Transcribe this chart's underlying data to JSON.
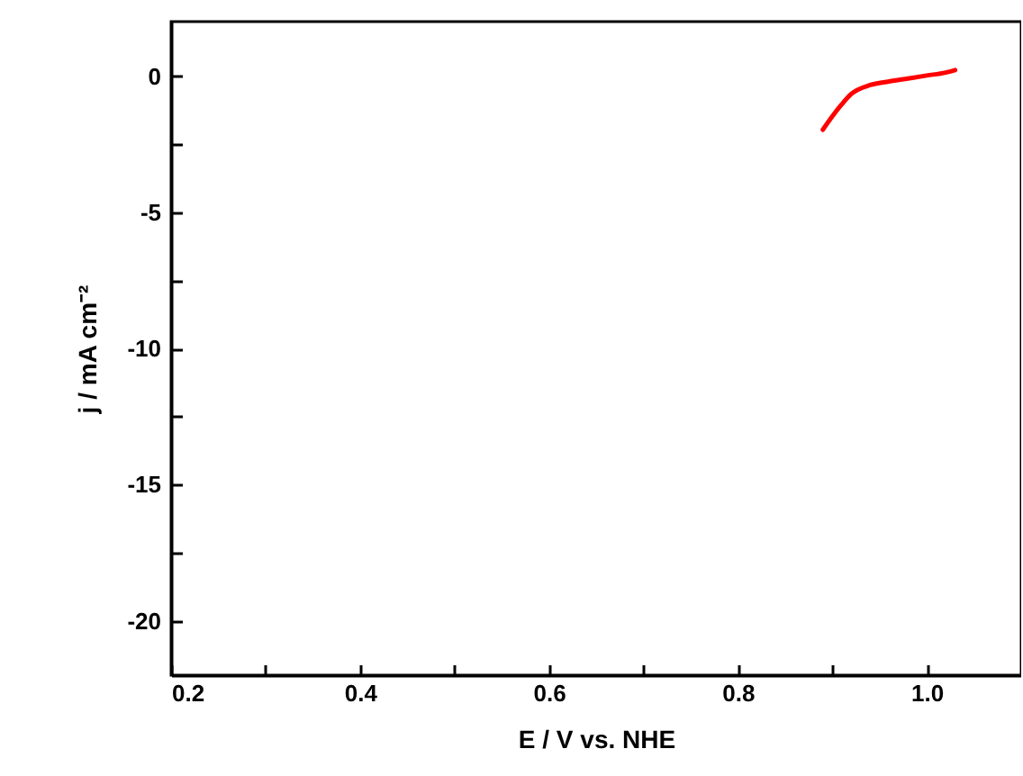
{
  "chart_data": {
    "type": "line",
    "xlabel": "E / V vs. NHE",
    "ylabel": "j / mA cm⁻²",
    "x": [
      0.89,
      0.9,
      0.91,
      0.92,
      0.94,
      0.96,
      0.98,
      1.0,
      1.02,
      1.03
    ],
    "series": [
      {
        "color": "#ff0000",
        "values": [
          -1.97,
          -1.48,
          -1.04,
          -0.66,
          -0.33,
          -0.2,
          -0.09,
          0.02,
          0.13,
          0.22
        ]
      }
    ],
    "xlim": [
      0.2,
      1.1
    ],
    "ylim": [
      -22,
      2
    ],
    "xticks": [
      0.2,
      {
        "value": 0.3,
        "label": null
      },
      0.4,
      {
        "value": 0.5,
        "label": null
      },
      0.6,
      {
        "value": 0.7,
        "label": null
      },
      0.8,
      {
        "value": 0.9,
        "label": null
      },
      "1.0",
      {
        "value": 1.1,
        "label": null
      }
    ],
    "yticks": [
      {
        "value": -20,
        "label": "-20"
      },
      {
        "value": -17.5,
        "label": null
      },
      {
        "value": -15,
        "label": "-15"
      },
      {
        "value": -12.5,
        "label": null
      },
      {
        "value": -10,
        "label": "-10"
      },
      {
        "value": -7.5,
        "label": null
      },
      {
        "value": -5,
        "label": "-5"
      },
      {
        "value": -2.5,
        "label": null
      },
      0
    ],
    "grid": false,
    "marker": "none",
    "line_style": "solid"
  }
}
